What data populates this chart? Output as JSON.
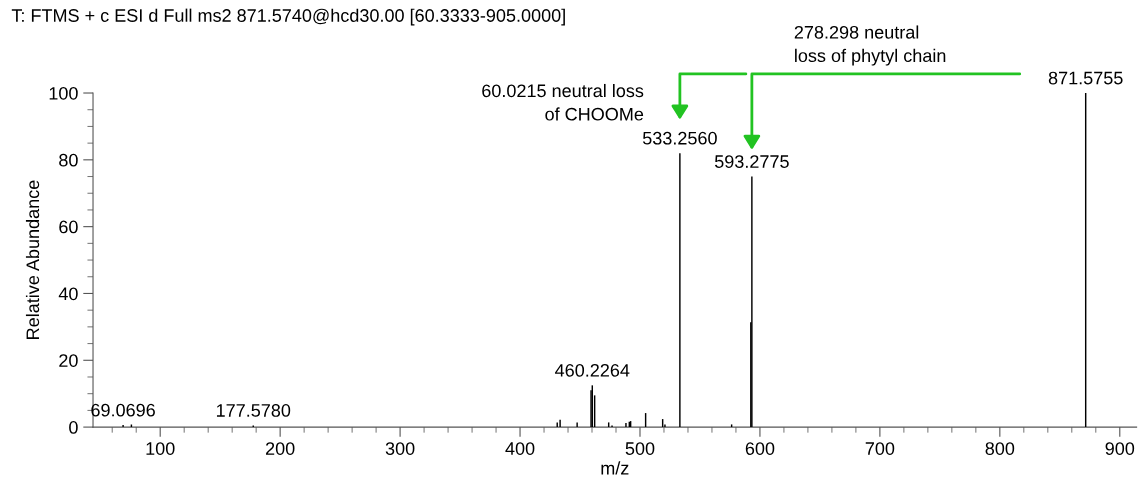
{
  "chart_data": {
    "type": "bar",
    "title": "T: FTMS + c ESI d Full ms2 871.5740@hcd30.00 [60.3333-905.0000]",
    "xlabel": "m/z",
    "ylabel": "Relative Abundance",
    "x": [
      69.0696,
      76.0,
      177.578,
      431.0,
      433.4,
      447.6,
      459.2,
      460.2264,
      462.2,
      473.9,
      476.7,
      488.3,
      491.1,
      492.2,
      504.7,
      518.9,
      520.8,
      533.256,
      576.4,
      592.4,
      593.2775,
      871.5755
    ],
    "values": [
      0.6,
      0.8,
      0.5,
      1.4,
      2.2,
      1.4,
      11,
      12.5,
      9.5,
      1.4,
      0.5,
      1.2,
      1.6,
      1.8,
      4.2,
      2.4,
      0.8,
      82,
      0.8,
      31.4,
      75,
      100
    ],
    "color": "#000000",
    "xlim": [
      44,
      914
    ],
    "ylim": [
      0,
      100
    ],
    "xticks": [
      100,
      200,
      300,
      400,
      500,
      600,
      700,
      800,
      900
    ],
    "yticks": [
      0,
      20,
      40,
      60,
      80,
      100
    ],
    "grid": false,
    "legend": false,
    "annotations": [
      {
        "text": "69.0696",
        "x": 69.0696,
        "y": 0.6
      },
      {
        "text": "177.5780",
        "x": 177.578,
        "y": 0.5
      },
      {
        "text": "460.2264",
        "x": 460.2264,
        "y": 12.5
      },
      {
        "text": "533.2560",
        "x": 533.256,
        "y": 82
      },
      {
        "text": "593.2775",
        "x": 593.2775,
        "y": 75
      },
      {
        "text": "871.5755",
        "x": 871.5755,
        "y": 100
      },
      "278.298 neutral\nloss of phytyl chain",
      "60.0215 neutral loss\nof CHOOMe"
    ]
  }
}
